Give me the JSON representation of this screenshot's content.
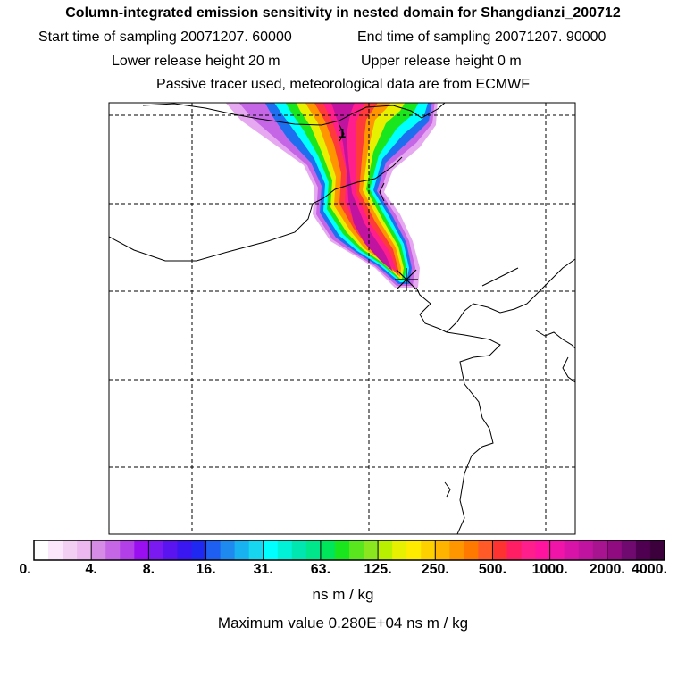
{
  "header": {
    "title": "Column-integrated emission sensitivity in nested domain for Shangdianzi_200712",
    "start": "Start time of sampling 20071207. 60000",
    "end": "End time of sampling 20071207. 90000",
    "lower": "Lower release height   20 m",
    "upper": "Upper release height    0 m",
    "passive": "Passive tracer used, meteorological data are from ECMWF"
  },
  "map": {
    "station_label": "1"
  },
  "colorbar": {
    "labels": [
      "0.",
      "4.",
      "8.",
      "16.",
      "31.",
      "63.",
      "125.",
      "250.",
      "500.",
      "1000.",
      "2000.",
      "4000."
    ],
    "colors": [
      "#ffffff",
      "#fbe6fb",
      "#f4cff4",
      "#edb8ef",
      "#d68be6",
      "#c566e6",
      "#b23fe8",
      "#9a0ff0",
      "#7a1af0",
      "#5a14f0",
      "#3a16f0",
      "#1e28f0",
      "#1e5ef0",
      "#1e8af0",
      "#19b2f0",
      "#16d6f0",
      "#00ffff",
      "#00f0d8",
      "#00e6b0",
      "#00e68a",
      "#00e65a",
      "#1ae61e",
      "#5ae61e",
      "#8ae61e",
      "#b8f000",
      "#e6f000",
      "#ffeb00",
      "#ffd000",
      "#ffb400",
      "#ff9600",
      "#ff7800",
      "#ff5a28",
      "#ff3232",
      "#ff1e64",
      "#ff1e8c",
      "#ff14a0",
      "#f014a8",
      "#d814a8",
      "#c014a0",
      "#a81490",
      "#900a80",
      "#700a70",
      "#500050",
      "#3c003c"
    ],
    "units": "ns m / kg"
  },
  "footer": {
    "max_value": "Maximum value  0.280E+04 ns m / kg"
  }
}
